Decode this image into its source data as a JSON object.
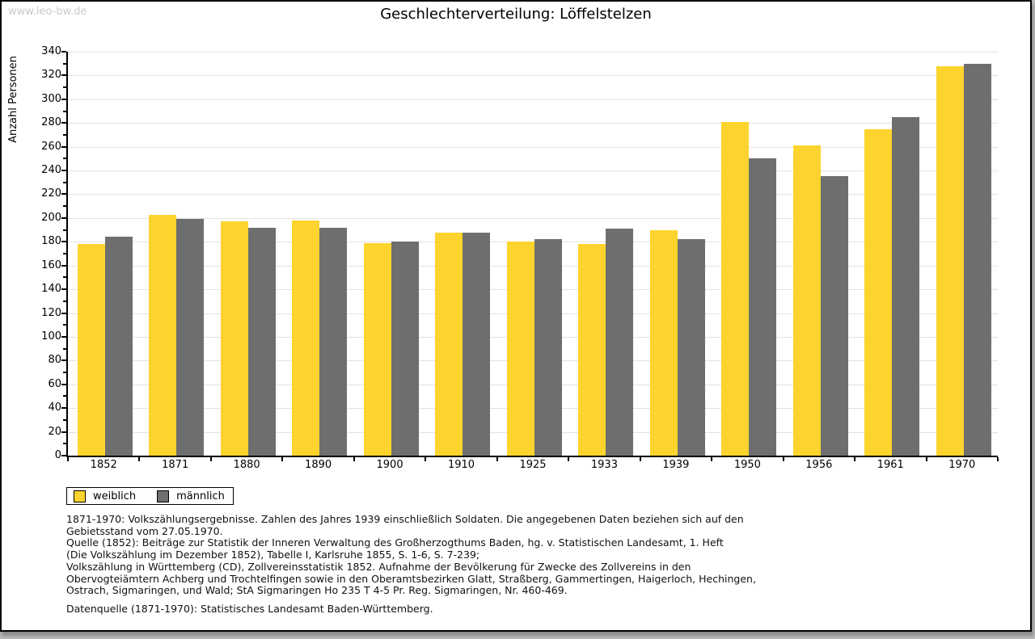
{
  "watermark": "www.leo-bw.de",
  "title": "Geschlechterverteilung: Löffelstelzen",
  "chart_data": {
    "type": "bar",
    "title": "Geschlechterverteilung: Löffelstelzen",
    "xlabel": "",
    "ylabel": "Anzahl Personen",
    "ylim": [
      0,
      340
    ],
    "ytick_step": 20,
    "yminor_step": 10,
    "yticks": [
      0,
      20,
      40,
      60,
      80,
      100,
      120,
      140,
      160,
      180,
      200,
      220,
      240,
      260,
      280,
      300,
      320,
      340
    ],
    "grid": true,
    "legend_position": "below-left",
    "categories": [
      "1852",
      "1871",
      "1880",
      "1890",
      "1900",
      "1910",
      "1925",
      "1933",
      "1939",
      "1950",
      "1956",
      "1961",
      "1970"
    ],
    "series": [
      {
        "name": "weiblich",
        "color": "#fcd42d",
        "values": [
          178,
          203,
          197,
          198,
          179,
          188,
          180,
          178,
          190,
          281,
          261,
          275,
          328
        ]
      },
      {
        "name": "männlich",
        "color": "#6e6e6e",
        "values": [
          184,
          199,
          192,
          192,
          180,
          188,
          182,
          191,
          182,
          250,
          235,
          285,
          330
        ]
      }
    ]
  },
  "colors": {
    "weiblich": "#fcd42d",
    "maennlich": "#6e6e6e",
    "gridline": "#e2e2e2",
    "watermark": "#c9c9c9",
    "axis": "#000000"
  },
  "footnotes": {
    "lines": [
      "1871-1970: Volkszählungsergebnisse. Zahlen des Jahres 1939 einschließlich Soldaten. Die angegebenen Daten beziehen sich auf den",
      "Gebietsstand vom 27.05.1970.",
      "Quelle (1852): Beiträge zur Statistik der Inneren Verwaltung des Großherzogthums Baden, hg. v. Statistischen Landesamt, 1. Heft",
      "(Die Volkszählung im Dezember 1852), Tabelle I, Karlsruhe 1855, S. 1-6, S. 7-239;",
      "Volkszählung in Württemberg (CD), Zollvereinsstatistik 1852. Aufnahme der Bevölkerung für Zwecke des Zollvereins in den",
      "Obervogteiämtern Achberg und Trochtelfingen sowie in den Oberamtsbezirken Glatt, Straßberg, Gammertingen, Haigerloch, Hechingen,",
      "Ostrach, Sigmaringen, und Wald; StA Sigmaringen Ho 235 T 4-5 Pr. Reg. Sigmaringen, Nr. 460-469."
    ],
    "datasource": "Datenquelle (1871-1970): Statistisches Landesamt Baden-Württemberg."
  }
}
